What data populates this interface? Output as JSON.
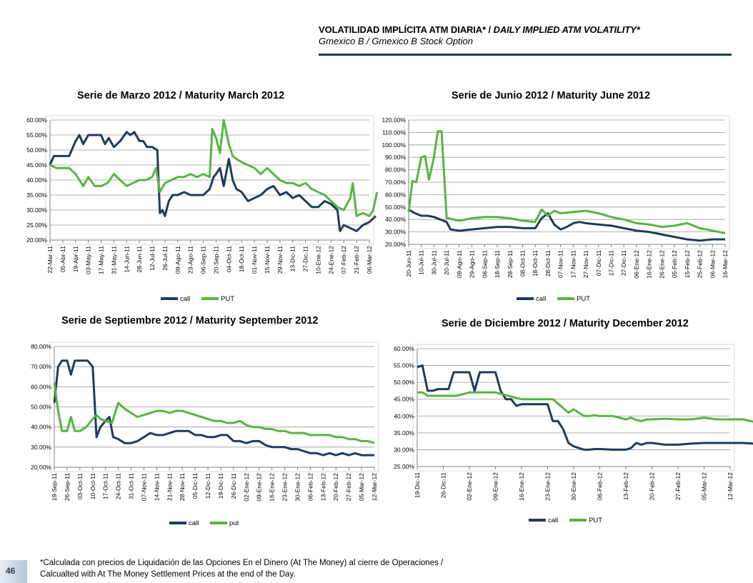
{
  "header": {
    "title_es": "VOLATILIDAD IMPLÍCITA ATM DIARIA*",
    "title_sep": " / ",
    "title_en": "DAILY IMPLIED ATM VOLATILITY*",
    "subtitle": "Gmexico B / Gmexico B Stock Option"
  },
  "footnote": {
    "line1": "*Calculada con precios de Liquidación de las Opciones En el Dinero (At The Money) al cierre de Operaciones /",
    "line2": "Calcualted with At The Money Settlement Prices at the end of the Day."
  },
  "page_number": "46",
  "colors": {
    "call": "#1f3b5c",
    "put": "#55b541",
    "grid": "#999999",
    "axis": "#808080"
  },
  "chart_data": [
    {
      "type": "line",
      "title": "Serie de Marzo 2012 / Maturity March 2012",
      "x_ticks": [
        "22-Mar-11",
        "05-Abr-11",
        "19-Abr-11",
        "03-May-11",
        "17-May-11",
        "31-May-11",
        "14-Jun-11",
        "28-Jun-11",
        "12-Jul-11",
        "26-Jul-11",
        "09-Ago-11",
        "23-Ago-11",
        "06-Sep-11",
        "20-Sep-11",
        "04-Oct-11",
        "18-Oct-11",
        "01-Nov-11",
        "15-Nov-11",
        "29-Nov-11",
        "13-Dic-11",
        "27-Dic-11",
        "10-Ene-12",
        "24-Ene-12",
        "07-Feb-12",
        "21-Feb-12",
        "06-Mar-12"
      ],
      "y_ticks": [
        "20.00%",
        "25.00%",
        "30.00%",
        "35.00%",
        "40.00%",
        "45.00%",
        "50.00%",
        "55.00%",
        "60.00%"
      ],
      "ylim": [
        20,
        60
      ],
      "legend_position": "bottom",
      "series": [
        {
          "name": "call",
          "key": "call",
          "x": [
            0,
            0.3,
            0.6,
            1,
            1.5,
            2,
            2.3,
            2.6,
            3,
            3.3,
            3.6,
            4,
            4.3,
            4.6,
            5,
            5.5,
            6,
            6.3,
            6.6,
            7,
            7.3,
            7.6,
            8,
            8.4,
            8.6,
            8.8,
            9,
            9.3,
            9.6,
            10,
            10.5,
            11,
            11.5,
            12,
            12.5,
            12.8,
            13,
            13.3,
            13.6,
            14,
            14.3,
            14.6,
            15,
            15.5,
            16,
            16.5,
            17,
            17.5,
            18,
            18.5,
            19,
            19.5,
            20,
            20.5,
            21,
            21.5,
            22,
            22.5,
            22.7,
            23,
            23.5,
            24,
            24.5,
            25,
            25.5
          ],
          "values": [
            45,
            48,
            48,
            48,
            48,
            53,
            55,
            52,
            55,
            55,
            55,
            55,
            52,
            54,
            51,
            53,
            56,
            55,
            56,
            53,
            53,
            51,
            51,
            50,
            29,
            30,
            28,
            33,
            35,
            35,
            36,
            35,
            35,
            35,
            37,
            41,
            42,
            44,
            38,
            47,
            40,
            37,
            36,
            33,
            34,
            35,
            37,
            38,
            35,
            36,
            34,
            35,
            33,
            31,
            31,
            33,
            32,
            30,
            23,
            25,
            24,
            23,
            25,
            26,
            28
          ]
        },
        {
          "name": "PUT",
          "key": "put",
          "x": [
            0,
            0.5,
            1,
            1.5,
            2,
            2.3,
            2.6,
            3,
            3.5,
            4,
            4.5,
            5,
            5.5,
            6,
            6.5,
            7,
            7.5,
            8,
            8.3,
            8.6,
            9,
            9.5,
            10,
            10.5,
            11,
            11.5,
            12,
            12.5,
            12.7,
            13,
            13.3,
            13.6,
            14,
            14.3,
            14.6,
            15,
            15.5,
            16,
            16.5,
            17,
            17.5,
            18,
            18.5,
            19,
            19.5,
            20,
            20.5,
            21,
            21.5,
            22,
            22.5,
            23,
            23.5,
            23.7,
            24,
            24.5,
            25,
            25.3,
            25.6
          ],
          "values": [
            45,
            44,
            44,
            44,
            42,
            40,
            38,
            41,
            38,
            38,
            39,
            42,
            40,
            38,
            39,
            40,
            40,
            41,
            44,
            36,
            39,
            40,
            41,
            41,
            42,
            41,
            42,
            41,
            57,
            54,
            49,
            60,
            52,
            48,
            47,
            46,
            45,
            44,
            42,
            44,
            42,
            40,
            39,
            39,
            38,
            39,
            37,
            36,
            35,
            33,
            31,
            30,
            34,
            39,
            28,
            29,
            28,
            30,
            36
          ]
        }
      ]
    },
    {
      "type": "line",
      "title": "Serie de Junio 2012 / Maturity June 2012",
      "x_ticks": [
        "20-Jun-11",
        "10-Jul-11",
        "30-Jul-11",
        "20-Jul-11",
        "09-Ago-11",
        "29-Ago-11",
        "08-Sep-11",
        "18-Sep-11",
        "28-Sep-11",
        "08-Oct-11",
        "18-Oct-11",
        "28-Oct-11",
        "07-Nov-11",
        "17-Nov-11",
        "27-Nov-11",
        "07-Dic-11",
        "17-Dic-11",
        "27-Dic-11",
        "06-Ene-12",
        "16-Ene-12",
        "26-Ene-12",
        "05-Feb-12",
        "15-Feb-12",
        "25-Feb-12",
        "06-Mar-12",
        "16-Mar-12"
      ],
      "y_ticks": [
        "20.00%",
        "30.00%",
        "40.00%",
        "50.00%",
        "60.00%",
        "70.00%",
        "80.00%",
        "90.00%",
        "100.00%",
        "110.00%",
        "120.00%"
      ],
      "ylim": [
        20,
        120
      ],
      "legend_position": "bottom",
      "series": [
        {
          "name": "call",
          "key": "call",
          "x": [
            0,
            0.5,
            1,
            1.5,
            2,
            2.5,
            3,
            3.3,
            4,
            5,
            6,
            7,
            8,
            9,
            10,
            10.5,
            11,
            11.5,
            12,
            12.5,
            13,
            13.5,
            14,
            15,
            16,
            17,
            18,
            19,
            20,
            21,
            22,
            23,
            24,
            25
          ],
          "values": [
            48,
            45,
            43,
            43,
            42,
            40,
            38,
            32,
            31,
            32,
            33,
            34,
            34,
            33,
            33,
            41,
            45,
            36,
            32,
            34,
            37,
            38,
            37,
            36,
            35,
            33,
            31,
            30,
            28,
            26,
            24,
            23,
            24,
            24
          ]
        },
        {
          "name": "PUT",
          "key": "put",
          "x": [
            0,
            0.3,
            0.6,
            1,
            1.3,
            1.6,
            2,
            2.3,
            2.6,
            3,
            3.2,
            3.5,
            4,
            5,
            6,
            7,
            8,
            9,
            10,
            10.5,
            11,
            11.5,
            12,
            13,
            14,
            15,
            16,
            17,
            18,
            19,
            20,
            21,
            22,
            23,
            24,
            25
          ],
          "values": [
            46,
            71,
            70,
            90,
            91,
            72,
            90,
            111,
            111,
            41,
            41,
            40,
            39,
            41,
            42,
            42,
            41,
            39,
            38,
            48,
            43,
            47,
            45,
            46,
            47,
            45,
            42,
            40,
            37,
            36,
            34,
            35,
            37,
            33,
            31,
            29
          ]
        }
      ]
    },
    {
      "type": "line",
      "title": "Serie de Septiembre 2012 / Maturity September 2012",
      "x_ticks": [
        "19-Sep-11",
        "26-Sep-11",
        "03-Oct-11",
        "10-Oct-11",
        "17-Oct-11",
        "24-Oct-11",
        "31-Oct-11",
        "07-Nov-11",
        "14-Nov-11",
        "21-Nov-11",
        "28-Nov-11",
        "05-Dic-11",
        "12-Dic-11",
        "19-Dic-11",
        "26-Dic-11",
        "02-Ene-12",
        "09-Ene-12",
        "16-Ene-12",
        "23-Ene-12",
        "30-Ene-12",
        "06-Feb-12",
        "13-Feb-12",
        "20-Feb-12",
        "27-Feb-12",
        "05-Mar-12",
        "12-Mar-12"
      ],
      "y_ticks": [
        "20.00%",
        "30.00%",
        "40.00%",
        "50.00%",
        "60.00%",
        "70.00%",
        "80.00%"
      ],
      "ylim": [
        20,
        80
      ],
      "legend_position": "bottom",
      "series": [
        {
          "name": "call",
          "key": "call",
          "x": [
            0,
            0.3,
            0.6,
            1,
            1.3,
            1.6,
            2,
            2.3,
            2.6,
            3,
            3.3,
            3.6,
            4,
            4.3,
            4.6,
            5,
            5.5,
            6,
            6.5,
            7,
            7.5,
            8,
            8.5,
            9,
            9.5,
            10,
            10.5,
            11,
            11.5,
            12,
            12.5,
            13,
            13.5,
            14,
            14.5,
            15,
            15.5,
            16,
            16.5,
            17,
            17.5,
            18,
            18.5,
            19,
            19.5,
            20,
            20.5,
            21,
            21.5,
            22,
            22.5,
            23,
            23.5,
            24,
            24.5,
            25
          ],
          "values": [
            52,
            70,
            73,
            73,
            66,
            73,
            73,
            73,
            73,
            70,
            35,
            40,
            43,
            45,
            35,
            34,
            32,
            32,
            33,
            35,
            37,
            36,
            36,
            37,
            38,
            38,
            38,
            36,
            36,
            35,
            35,
            36,
            36,
            33,
            33,
            32,
            33,
            33,
            31,
            30,
            30,
            30,
            29,
            29,
            28,
            27,
            27,
            26,
            27,
            26,
            27,
            26,
            27,
            26,
            26,
            26
          ]
        },
        {
          "name": "put",
          "key": "put",
          "x": [
            0,
            0.3,
            0.6,
            1,
            1.3,
            1.6,
            2,
            2.5,
            3,
            3.3,
            3.6,
            4,
            4.5,
            5,
            5.5,
            6,
            6.5,
            7,
            7.5,
            8,
            8.5,
            9,
            9.5,
            10,
            10.5,
            11,
            11.5,
            12,
            12.5,
            13,
            13.5,
            14,
            14.5,
            15,
            15.5,
            16,
            16.5,
            17,
            17.5,
            18,
            18.5,
            19,
            19.5,
            20,
            20.5,
            21,
            21.5,
            22,
            22.5,
            23,
            23.5,
            24,
            24.5,
            25
          ],
          "values": [
            62,
            48,
            38,
            38,
            45,
            38,
            38,
            40,
            44,
            46,
            44,
            43,
            42,
            52,
            49,
            47,
            45,
            46,
            47,
            48,
            48,
            47,
            48,
            48,
            47,
            46,
            45,
            44,
            43,
            43,
            42,
            42,
            43,
            41,
            40,
            40,
            39,
            39,
            38,
            38,
            37,
            37,
            37,
            36,
            36,
            36,
            36,
            35,
            35,
            34,
            34,
            33,
            33,
            32
          ]
        }
      ]
    },
    {
      "type": "line",
      "title": "Serie de Diciembre 2012 / Maturity December 2012",
      "x_ticks": [
        "19-Dic-11",
        "26-Dic-11",
        "02-Ene-12",
        "09-Ene-12",
        "16-Ene-12",
        "23-Ene-12",
        "30-Ene-12",
        "06-Feb-12",
        "13-Feb-12",
        "20-Feb-12",
        "27-Feb-12",
        "05-Mar-12",
        "12-Mar-12"
      ],
      "y_ticks": [
        "25.00%",
        "30.00%",
        "35.00%",
        "40.00%",
        "45.00%",
        "50.00%",
        "55.00%",
        "60.00%"
      ],
      "ylim": [
        25,
        60
      ],
      "legend_position": "bottom",
      "series": [
        {
          "name": "call",
          "key": "call",
          "x": [
            0,
            0.2,
            0.4,
            0.6,
            0.8,
            1,
            1.2,
            1.4,
            1.6,
            1.8,
            2,
            2.2,
            2.4,
            2.6,
            2.8,
            3,
            3.2,
            3.4,
            3.6,
            3.8,
            4,
            4.5,
            5,
            5.2,
            5.4,
            5.6,
            5.8,
            6,
            6.2,
            6.4,
            6.6,
            6.8,
            7,
            7.5,
            8,
            8.2,
            8.4,
            8.6,
            8.8,
            9,
            9.5,
            10,
            10.5,
            11,
            11.5,
            12,
            12.5,
            12.9
          ],
          "values": [
            54.5,
            55,
            47.5,
            47.5,
            48,
            48,
            48,
            53,
            53,
            53,
            53,
            47.5,
            53,
            53,
            53,
            53,
            47.5,
            45,
            45,
            43,
            43.5,
            43.5,
            43.5,
            38.5,
            38.5,
            36,
            32,
            31,
            30.5,
            30,
            30,
            30.2,
            30.2,
            30,
            30,
            30.5,
            32,
            31.5,
            32,
            32,
            31.5,
            31.5,
            31.8,
            32,
            32,
            32,
            32,
            31.8
          ]
        },
        {
          "name": "PUT",
          "key": "put",
          "x": [
            0,
            0.2,
            0.4,
            0.6,
            0.8,
            1,
            1.5,
            2,
            2.5,
            3,
            3.5,
            4,
            4.5,
            5,
            5.2,
            5.5,
            5.8,
            6,
            6.2,
            6.4,
            6.6,
            6.8,
            7,
            7.5,
            8,
            8.2,
            8.4,
            8.6,
            8.8,
            9,
            9.5,
            10,
            10.5,
            11,
            11.5,
            12,
            12.5,
            12.9
          ],
          "values": [
            47,
            47,
            46,
            46,
            46,
            46,
            46,
            47,
            47,
            47,
            46,
            45,
            45,
            45,
            45,
            43,
            41,
            42,
            41,
            40,
            40,
            40.2,
            40,
            40,
            39,
            39.5,
            38.8,
            38.5,
            39,
            39,
            39.2,
            39,
            39,
            39.5,
            39,
            39,
            39,
            38.3
          ]
        }
      ]
    }
  ]
}
